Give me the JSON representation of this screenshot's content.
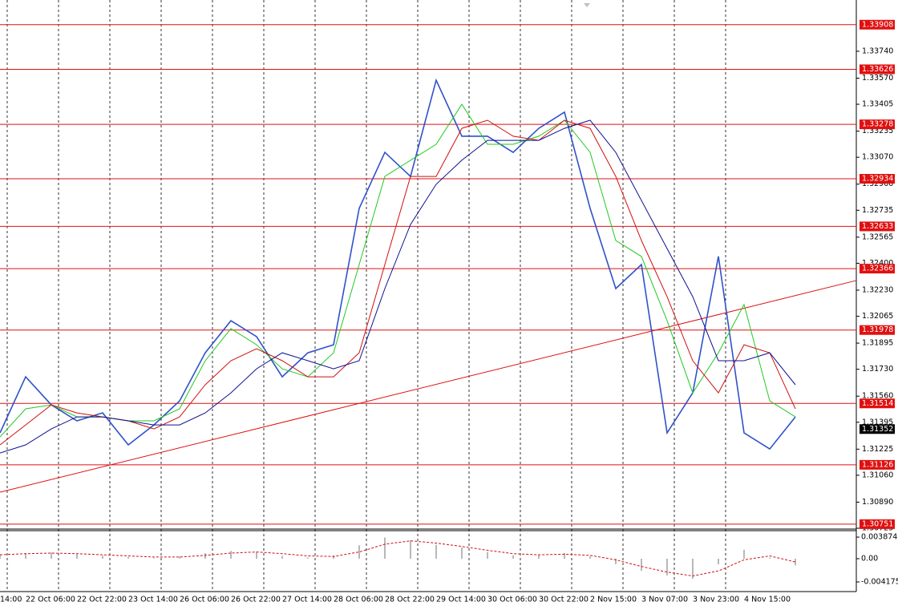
{
  "chart_data": [
    {
      "type": "line",
      "x": [
        0,
        8,
        16,
        24,
        32,
        40,
        48,
        56,
        64,
        72,
        80,
        88,
        96,
        104,
        112,
        120,
        128,
        136,
        144,
        152,
        160,
        168,
        176,
        184,
        192,
        200,
        208,
        216,
        224,
        232,
        240,
        248
      ],
      "xlim": [
        0,
        267
      ],
      "xticks": [
        {
          "value": 0,
          "label": "14:00"
        },
        {
          "value": 8,
          "label": "22 Oct 06:00"
        },
        {
          "value": 24,
          "label": "22 Oct 22:00"
        },
        {
          "value": 40,
          "label": "23 Oct 14:00"
        },
        {
          "value": 56,
          "label": "26 Oct 06:00"
        },
        {
          "value": 72,
          "label": "26 Oct 22:00"
        },
        {
          "value": 88,
          "label": "27 Oct 14:00"
        },
        {
          "value": 104,
          "label": "28 Oct 06:00"
        },
        {
          "value": 120,
          "label": "28 Oct 22:00"
        },
        {
          "value": 136,
          "label": "29 Oct 14:00"
        },
        {
          "value": 152,
          "label": "30 Oct 06:00"
        },
        {
          "value": 168,
          "label": "30 Oct 22:00"
        },
        {
          "value": 184,
          "label": "2 Nov 15:00"
        },
        {
          "value": 200,
          "label": "3 Nov 07:00"
        },
        {
          "value": 216,
          "label": "3 Nov 23:00"
        },
        {
          "value": 232,
          "label": "4 Nov 15:00"
        }
      ],
      "ylim": [
        1.3072,
        1.34064
      ],
      "yticks": [
        {
          "value": 1.3374,
          "label": "1.33740"
        },
        {
          "value": 1.3357,
          "label": "1.33570"
        },
        1.33405,
        1.33235,
        {
          "value": 1.3307,
          "label": "1.33070"
        },
        {
          "value": 1.329,
          "label": "1.32900"
        },
        1.32735,
        1.32565,
        {
          "value": 1.324,
          "label": "1.32400"
        },
        {
          "value": 1.3223,
          "label": "1.32230"
        },
        1.32065,
        1.31895,
        {
          "value": 1.3173,
          "label": "1.31730"
        },
        {
          "value": 1.3156,
          "label": "1.31560"
        },
        1.31395,
        1.31225,
        {
          "value": 1.3106,
          "label": "1.31060"
        },
        {
          "value": 1.3089,
          "label": "1.30890"
        },
        1.30725
      ],
      "series": [
        {
          "color": "#2f52c9",
          "values": [
            1.31328,
            1.31682,
            1.31505,
            1.31404,
            1.31454,
            1.31252,
            1.31378,
            1.3153,
            1.31834,
            1.32037,
            1.31936,
            1.31682,
            1.31834,
            1.31885,
            1.32747,
            1.33101,
            1.32949,
            1.33557,
            1.33203,
            1.33203,
            1.33101,
            1.33253,
            1.33355,
            1.32747,
            1.3224,
            1.32392,
            1.31328,
            1.31581,
            1.32443,
            1.31328,
            1.31226,
            1.31429
          ]
        },
        {
          "color": "#22c922",
          "values": [
            1.31302,
            1.3148,
            1.31505,
            1.31429,
            1.31429,
            1.31404,
            1.31404,
            1.3148,
            1.31784,
            1.31987,
            1.31885,
            1.31733,
            1.31682,
            1.31834,
            1.32392,
            1.32949,
            1.33051,
            1.33152,
            1.33405,
            1.33152,
            1.33152,
            1.33203,
            1.33304,
            1.33101,
            1.32544,
            1.32443,
            1.32037,
            1.31581,
            1.31834,
            1.32139,
            1.3153,
            1.31429
          ]
        },
        {
          "color": "#d01010",
          "values": [
            1.31252,
            1.31378,
            1.31505,
            1.31454,
            1.31429,
            1.31404,
            1.31353,
            1.31429,
            1.31632,
            1.31784,
            1.3186,
            1.31784,
            1.31682,
            1.31682,
            1.31834,
            1.32392,
            1.32949,
            1.32949,
            1.33253,
            1.33304,
            1.33203,
            1.33177,
            1.33304,
            1.33253,
            1.32949,
            1.32544,
            1.32189,
            1.31784,
            1.31581,
            1.31885,
            1.31834,
            1.3148
          ]
        },
        {
          "color": "#101090",
          "values": [
            1.31201,
            1.31252,
            1.31353,
            1.31429,
            1.31429,
            1.31404,
            1.31378,
            1.31378,
            1.31454,
            1.31581,
            1.31733,
            1.31834,
            1.31784,
            1.31733,
            1.31784,
            1.3224,
            1.32645,
            1.32899,
            1.33051,
            1.33177,
            1.33177,
            1.33177,
            1.33253,
            1.33304,
            1.33101,
            1.32797,
            1.32493,
            1.32189,
            1.31784,
            1.31784,
            1.31834,
            1.31632
          ]
        }
      ],
      "levels": [
        1.33908,
        1.33626,
        1.33278,
        1.32934,
        1.32633,
        1.32366,
        1.31978,
        1.31514,
        1.31126,
        1.30751
      ],
      "level_color": "#e01010",
      "current_price": 1.31352,
      "trendline": {
        "x": [
          0,
          267
        ],
        "values": [
          1.30953,
          1.32291
        ]
      }
    },
    {
      "type": "bar",
      "x": [
        0,
        8,
        16,
        24,
        32,
        40,
        48,
        56,
        64,
        72,
        80,
        88,
        96,
        104,
        112,
        120,
        128,
        136,
        144,
        152,
        160,
        168,
        176,
        184,
        192,
        200,
        208,
        216,
        224,
        232,
        240,
        248
      ],
      "ylim": [
        -0.0059,
        0.00503
      ],
      "yticks": [
        0.003874,
        {
          "value": 0,
          "label": "0.00"
        },
        -0.004175
      ],
      "values": [
        0.0008,
        0.001,
        0.0011,
        0.0008,
        0.0005,
        0.0003,
        0.0001,
        0.0004,
        0.001,
        0.0014,
        0.0012,
        0.0005,
        0.0002,
        0.0006,
        0.0024,
        0.0038,
        0.0033,
        0.0025,
        0.002,
        0.0012,
        0.0006,
        0.0007,
        0.001,
        0.0004,
        -0.001,
        -0.0022,
        -0.003,
        -0.0036,
        -0.001,
        0.0016,
        0.0002,
        -0.0012
      ],
      "color": "#b8b8b8",
      "signal": {
        "color": "#d01010",
        "values": [
          0.0007,
          0.0009,
          0.001,
          0.0009,
          0.0007,
          0.0005,
          0.0003,
          0.0003,
          0.0006,
          0.001,
          0.0012,
          0.0009,
          0.0005,
          0.0004,
          0.0012,
          0.0026,
          0.0032,
          0.0028,
          0.0022,
          0.0015,
          0.0009,
          0.0007,
          0.0008,
          0.0006,
          -0.0002,
          -0.0014,
          -0.0024,
          -0.0031,
          -0.0022,
          -0.0002,
          0.0005,
          -0.0006
        ]
      }
    }
  ]
}
